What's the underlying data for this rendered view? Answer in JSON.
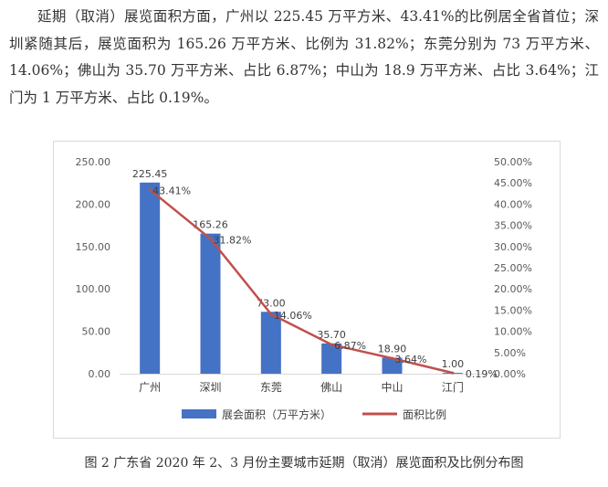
{
  "article": {
    "paragraph": "延期（取消）展览面积方面，广州以 225.45 万平方米、43.41%的比例居全省首位；深圳紧随其后，展览面积为 165.26 万平方米、比例为 31.82%；东莞分别为 73 万平方米、14.06%；佛山为 35.70 万平方米、占比 6.87%；中山为 18.9 万平方米、占比 3.64%；江门为 1 万平方米、占比 0.19%。",
    "caption": "图 2 广东省 2020 年 2、3 月份主要城市延期（取消）展览面积及比例分布图"
  },
  "chart_data": {
    "type": "bar",
    "categories": [
      "广州",
      "深圳",
      "东莞",
      "佛山",
      "中山",
      "江门"
    ],
    "series": [
      {
        "name": "展会面积（万平方米）",
        "type": "bar",
        "axis": "left",
        "color": "#4472c4",
        "values": [
          225.45,
          165.26,
          73.0,
          35.7,
          18.9,
          1.0
        ],
        "labels": [
          "225.45",
          "165.26",
          "73.00",
          "35.70",
          "18.90",
          "1.00"
        ]
      },
      {
        "name": "面积比例",
        "type": "line",
        "axis": "right",
        "color": "#c0504d",
        "values": [
          43.41,
          31.82,
          14.06,
          6.87,
          3.64,
          0.19
        ],
        "labels": [
          "43.41%",
          "31.82%",
          "14.06%",
          "6.87%",
          "3.64%",
          "0.19%"
        ]
      }
    ],
    "y_left": {
      "min": 0,
      "max": 250,
      "ticks": [
        "0.00",
        "50.00",
        "100.00",
        "150.00",
        "200.00",
        "250.00"
      ]
    },
    "y_right": {
      "min": 0,
      "max": 50,
      "ticks": [
        "0.00%",
        "5.00%",
        "10.00%",
        "15.00%",
        "20.00%",
        "25.00%",
        "30.00%",
        "35.00%",
        "40.00%",
        "45.00%",
        "50.00%"
      ]
    },
    "legend_position": "bottom",
    "grid": false
  }
}
